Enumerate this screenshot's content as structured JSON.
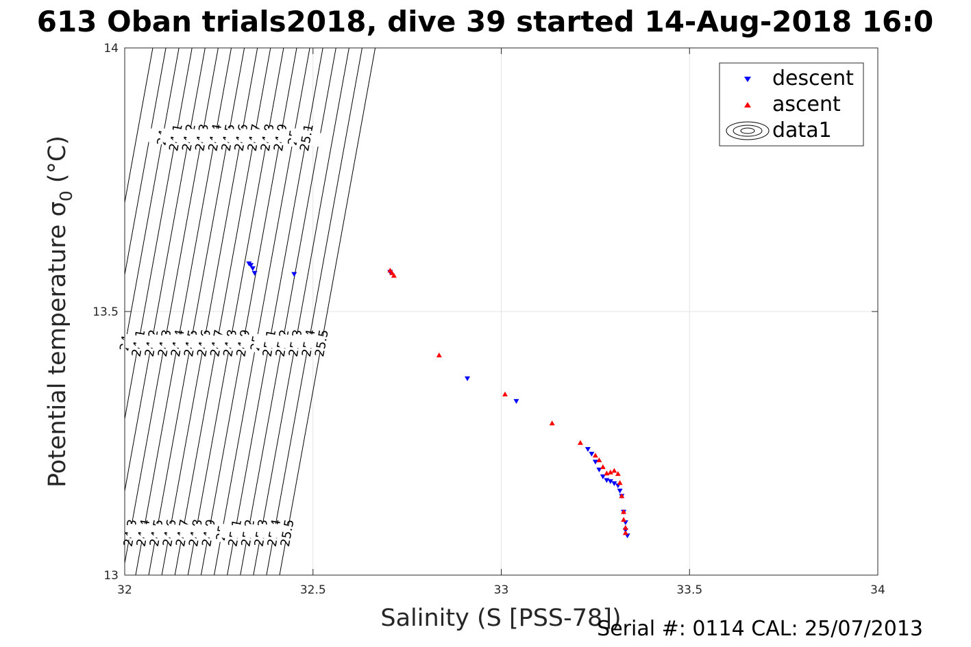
{
  "title": "613 Oban trials2018, dive 39 started 14-Aug-2018 16:0",
  "footer": "Serial #: 0114  CAL: 25/07/2013",
  "chart_data": {
    "type": "scatter",
    "title": "613 Oban trials2018, dive 39 started 14-Aug-2018 16:0",
    "xlabel": "Salinity (S [PSS-78])",
    "ylabel": "Potential temperature σ₀ (°C)",
    "xlim": [
      32,
      34
    ],
    "ylim": [
      13,
      14
    ],
    "xticks": [
      "32",
      "32.5",
      "33",
      "33.5",
      "34"
    ],
    "yticks": [
      "13",
      "13.5",
      "14"
    ],
    "grid": true,
    "legend": {
      "placement": "top-right",
      "entries": [
        "descent",
        "ascent",
        "data1"
      ]
    },
    "series": [
      {
        "name": "descent",
        "marker": "triangle-down",
        "color": "#0000ff",
        "x": [
          32.33,
          32.335,
          32.34,
          32.345,
          32.45,
          32.705,
          32.91,
          33.04,
          33.23,
          33.24,
          33.25,
          33.26,
          33.27,
          33.28,
          33.29,
          33.3,
          33.31,
          33.315,
          33.32,
          33.325,
          33.33,
          33.33,
          33.335
        ],
        "y": [
          13.591,
          13.588,
          13.582,
          13.573,
          13.571,
          13.575,
          13.373,
          13.33,
          13.239,
          13.23,
          13.215,
          13.2,
          13.187,
          13.18,
          13.178,
          13.174,
          13.17,
          13.16,
          13.15,
          13.12,
          13.1,
          13.085,
          13.075
        ]
      },
      {
        "name": "ascent",
        "marker": "triangle-up",
        "color": "#ff0000",
        "x": [
          32.705,
          32.71,
          32.715,
          32.835,
          33.01,
          33.135,
          33.21,
          33.25,
          33.26,
          33.27,
          33.28,
          33.29,
          33.3,
          33.31,
          33.315,
          33.32,
          33.325,
          33.325,
          33.33,
          33.33
        ],
        "y": [
          13.578,
          13.573,
          13.568,
          13.417,
          13.343,
          13.288,
          13.251,
          13.227,
          13.218,
          13.205,
          13.193,
          13.195,
          13.198,
          13.192,
          13.175,
          13.15,
          13.12,
          13.105,
          13.09,
          13.08
        ]
      }
    ],
    "density_contours": {
      "line1": {
        "intercept": 24.0,
        "labels_pos1": [
          "24",
          "24.1",
          "24.2",
          "24.3",
          "24.4",
          "24.5",
          "24.6",
          "24.7",
          "24.8",
          "24.9",
          "25",
          "25.1"
        ]
      },
      "line2": {
        "labels": [
          "24",
          "24.1",
          "24.2",
          "24.3",
          "24.4",
          "24.5",
          "24.6",
          "24.7",
          "24.8",
          "24.9",
          "25",
          "25.1",
          "25.2",
          "25.3",
          "25.4",
          "25.5"
        ]
      },
      "line3": {
        "labels": [
          "24.1",
          "24.2",
          "24.3",
          "24.4",
          "24.5",
          "24.6",
          "24.7",
          "24.8",
          "24.9",
          "25",
          "25.1",
          "25.2",
          "25.3",
          "25.4",
          "25.5"
        ]
      },
      "values": [
        24.0,
        24.1,
        24.2,
        24.3,
        24.4,
        24.5,
        24.6,
        24.7,
        24.8,
        24.9,
        25.0,
        25.1,
        25.2,
        25.3,
        25.4,
        25.5
      ]
    }
  }
}
